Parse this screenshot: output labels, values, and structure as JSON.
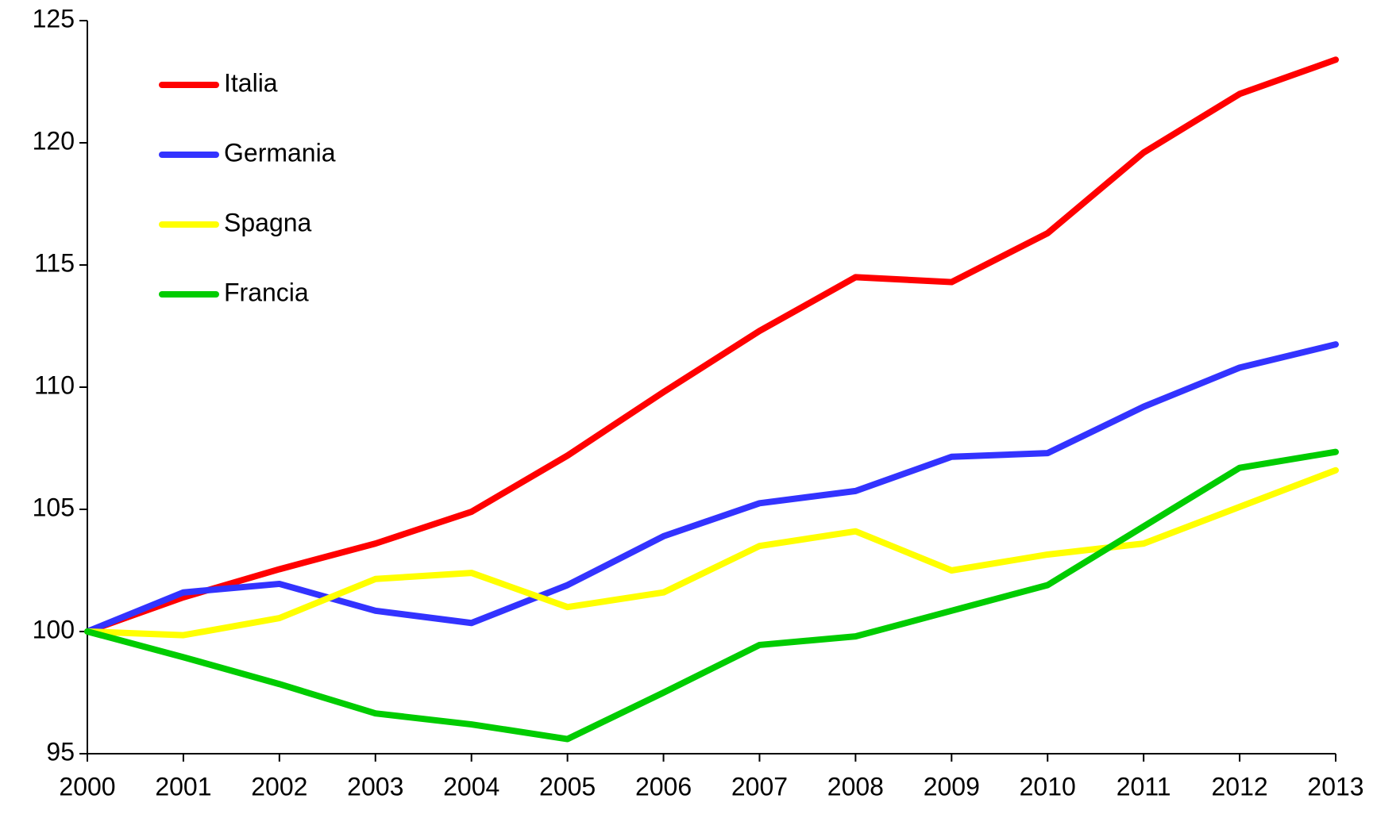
{
  "chart_data": {
    "type": "line",
    "x": [
      2000,
      2001,
      2002,
      2003,
      2004,
      2005,
      2006,
      2007,
      2008,
      2009,
      2010,
      2011,
      2012,
      2013
    ],
    "xlim": [
      2000,
      2013
    ],
    "xticks": [
      2000,
      2001,
      2002,
      2003,
      2004,
      2005,
      2006,
      2007,
      2008,
      2009,
      2010,
      2011,
      2012,
      2013
    ],
    "ylim": [
      95,
      125
    ],
    "yticks": [
      95,
      100,
      105,
      110,
      115,
      120,
      125
    ],
    "legend": "upper left",
    "series": [
      {
        "name": "Italia",
        "color": "#ff0000",
        "values": [
          100,
          101.4,
          102.55,
          103.6,
          104.9,
          107.2,
          109.8,
          112.3,
          114.5,
          114.3,
          116.3,
          119.6,
          122.0,
          123.4
        ]
      },
      {
        "name": "Germania",
        "color": "#3333ff",
        "values": [
          100,
          101.6,
          101.95,
          100.85,
          100.35,
          101.9,
          103.9,
          105.25,
          105.75,
          107.15,
          107.3,
          109.2,
          110.8,
          111.75
        ]
      },
      {
        "name": "Spagna",
        "color": "#ffff00",
        "values": [
          100,
          99.85,
          100.55,
          102.15,
          102.4,
          101.0,
          101.6,
          103.5,
          104.1,
          102.5,
          103.15,
          103.6,
          105.1,
          106.6
        ]
      },
      {
        "name": "Francia",
        "color": "#00cc00",
        "values": [
          100,
          98.95,
          97.85,
          96.65,
          96.2,
          95.6,
          97.5,
          99.45,
          99.8,
          100.85,
          101.9,
          104.3,
          106.7,
          107.35
        ]
      }
    ]
  }
}
